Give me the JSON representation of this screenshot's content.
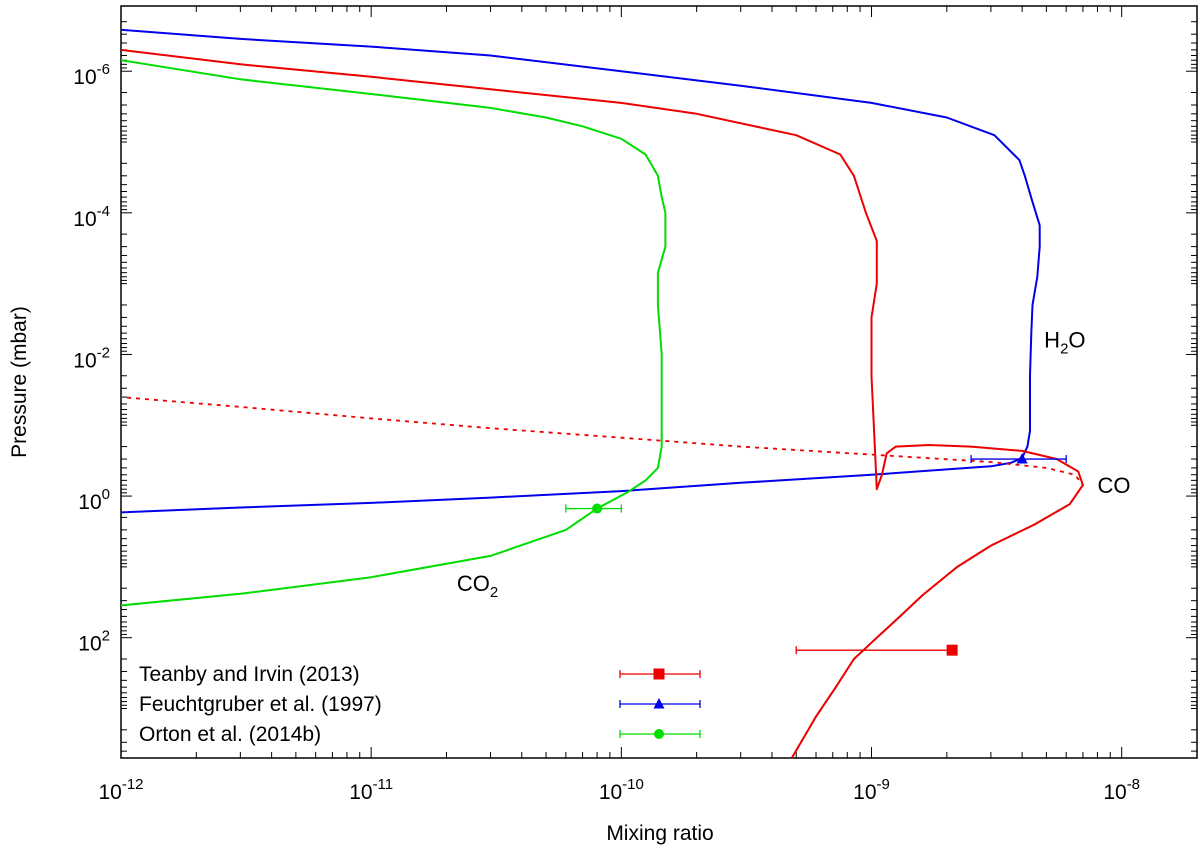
{
  "chart_data": {
    "type": "line",
    "title": "",
    "xlabel": "Mixing ratio",
    "ylabel": "Pressure (mbar)",
    "x_scale": "log",
    "y_scale": "log",
    "y_inverted": true,
    "xlim": [
      1e-12,
      2e-08
    ],
    "ylim": [
      1.2e-07,
      5000
    ],
    "grid": false,
    "legend_position": "bottom-left",
    "x_ticks": [
      {
        "base": "10",
        "exp": "-12",
        "value": 1e-12
      },
      {
        "base": "10",
        "exp": "-11",
        "value": 1e-11
      },
      {
        "base": "10",
        "exp": "-10",
        "value": 1e-10
      },
      {
        "base": "10",
        "exp": "-9",
        "value": 1e-09
      },
      {
        "base": "10",
        "exp": "-8",
        "value": 1e-08
      }
    ],
    "y_ticks": [
      {
        "base": "10",
        "exp": "-6",
        "value": 1e-06
      },
      {
        "base": "10",
        "exp": "-4",
        "value": 0.0001
      },
      {
        "base": "10",
        "exp": "-2",
        "value": 0.01
      },
      {
        "base": "10",
        "exp": "0",
        "value": 1
      },
      {
        "base": "10",
        "exp": "2",
        "value": 100
      }
    ],
    "series": [
      {
        "name": "H2O",
        "color": "#0000ee",
        "dash": "solid",
        "points": [
          [
            1e-12,
            1.7
          ],
          [
            3e-12,
            1.45
          ],
          [
            1e-11,
            1.25
          ],
          [
            3e-11,
            1.05
          ],
          [
            1e-10,
            0.85
          ],
          [
            3e-10,
            0.65
          ],
          [
            1e-09,
            0.5
          ],
          [
            2e-09,
            0.42
          ],
          [
            3e-09,
            0.38
          ],
          [
            3.6e-09,
            0.34
          ],
          [
            4e-09,
            0.29
          ],
          [
            4.2e-09,
            0.2
          ],
          [
            4.3e-09,
            0.12
          ],
          [
            4.3e-09,
            0.05
          ],
          [
            4.3e-09,
            0.02
          ],
          [
            4.35e-09,
            0.005
          ],
          [
            4.4e-09,
            0.002
          ],
          [
            4.6e-09,
            0.0008
          ],
          [
            4.7e-09,
            0.0003
          ],
          [
            4.7e-09,
            0.00015
          ],
          [
            4.4e-09,
            7e-05
          ],
          [
            4.1e-09,
            3e-05
          ],
          [
            3.9e-09,
            1.8e-05
          ],
          [
            3.1e-09,
            8e-06
          ],
          [
            2e-09,
            4.5e-06
          ],
          [
            1e-09,
            2.8e-06
          ],
          [
            3e-10,
            1.6e-06
          ],
          [
            1e-10,
            1e-06
          ],
          [
            3e-11,
            6e-07
          ],
          [
            1e-11,
            4.5e-07
          ],
          [
            3e-12,
            3.5e-07
          ],
          [
            1e-12,
            2.6e-07
          ]
        ]
      },
      {
        "name": "CO",
        "color": "#ee0000",
        "dash": "solid",
        "points": [
          [
            4.8e-10,
            5000
          ],
          [
            6e-10,
            1300
          ],
          [
            7.2e-10,
            500
          ],
          [
            8.5e-10,
            200
          ],
          [
            1.05e-09,
            100
          ],
          [
            1.3e-09,
            50
          ],
          [
            1.6e-09,
            25
          ],
          [
            2.2e-09,
            10
          ],
          [
            3e-09,
            5
          ],
          [
            4.5e-09,
            2.5
          ],
          [
            6.2e-09,
            1.3
          ],
          [
            7e-09,
            0.7
          ],
          [
            6.7e-09,
            0.45
          ],
          [
            5.5e-09,
            0.3
          ],
          [
            4e-09,
            0.23
          ],
          [
            2.5e-09,
            0.2
          ],
          [
            1.7e-09,
            0.19
          ],
          [
            1.25e-09,
            0.2
          ],
          [
            1.15e-09,
            0.25
          ],
          [
            1.1e-09,
            0.5
          ],
          [
            1.05e-09,
            0.8
          ],
          [
            1e-09,
            0.02
          ],
          [
            1e-09,
            0.003
          ],
          [
            1.05e-09,
            0.001
          ],
          [
            1.05e-09,
            0.00025
          ],
          [
            9.5e-10,
            0.0001
          ],
          [
            8.5e-10,
            3e-05
          ],
          [
            7.5e-10,
            1.5e-05
          ],
          [
            5e-10,
            8e-06
          ],
          [
            2e-10,
            4e-06
          ],
          [
            1e-10,
            2.8e-06
          ],
          [
            3e-11,
            1.8e-06
          ],
          [
            1e-11,
            1.2e-06
          ],
          [
            3e-12,
            8e-07
          ],
          [
            1e-12,
            5e-07
          ]
        ]
      },
      {
        "name": "CO dashed",
        "color": "#ee0000",
        "dash": "dotted",
        "points": [
          [
            4.8e-10,
            5000
          ],
          [
            6e-10,
            1300
          ],
          [
            7.2e-10,
            500
          ],
          [
            8.5e-10,
            200
          ],
          [
            1.05e-09,
            100
          ],
          [
            1.3e-09,
            50
          ],
          [
            1.6e-09,
            25
          ],
          [
            2.2e-09,
            10
          ],
          [
            3e-09,
            5
          ],
          [
            4.5e-09,
            2.5
          ],
          [
            6.2e-09,
            1.3
          ],
          [
            7e-09,
            0.7
          ],
          [
            6.5e-09,
            0.5
          ],
          [
            5e-09,
            0.4
          ],
          [
            3e-09,
            0.33
          ],
          [
            1e-09,
            0.26
          ],
          [
            3e-10,
            0.2
          ],
          [
            1e-10,
            0.15
          ],
          [
            3e-11,
            0.11
          ],
          [
            1e-11,
            0.08
          ],
          [
            3e-12,
            0.055
          ],
          [
            1e-12,
            0.04
          ]
        ]
      },
      {
        "name": "CO2",
        "color": "#00dd00",
        "dash": "solid",
        "points": [
          [
            1e-12,
            35
          ],
          [
            3e-12,
            24
          ],
          [
            1e-11,
            14
          ],
          [
            3e-11,
            7
          ],
          [
            6e-11,
            3
          ],
          [
            8e-11,
            1.5
          ],
          [
            1.05e-10,
            0.9
          ],
          [
            1.25e-10,
            0.6
          ],
          [
            1.4e-10,
            0.4
          ],
          [
            1.45e-10,
            0.2
          ],
          [
            1.45e-10,
            0.05
          ],
          [
            1.45e-10,
            0.01
          ],
          [
            1.4e-10,
            0.002
          ],
          [
            1.4e-10,
            0.0007
          ],
          [
            1.5e-10,
            0.0003
          ],
          [
            1.5e-10,
            0.0001
          ],
          [
            1.45e-10,
            6e-05
          ],
          [
            1.4e-10,
            3e-05
          ],
          [
            1.25e-10,
            1.5e-05
          ],
          [
            1e-10,
            9e-06
          ],
          [
            7e-11,
            6e-06
          ],
          [
            5e-11,
            4.5e-06
          ],
          [
            3e-11,
            3.3e-06
          ],
          [
            1e-11,
            2.1e-06
          ],
          [
            3e-12,
            1.3e-06
          ],
          [
            1e-12,
            7e-07
          ]
        ]
      }
    ],
    "observations": [
      {
        "name": "Teanby and Irvin (2013)",
        "color": "#ee0000",
        "marker": "square",
        "x": 2.1e-09,
        "xerr": [
          5e-10,
          2.1e-09
        ],
        "y": 150
      },
      {
        "name": "Feuchtgruber et al. (1997)",
        "color": "#0000ee",
        "marker": "triangle",
        "x": 4e-09,
        "xerr": [
          2.5e-09,
          6e-09
        ],
        "y": 0.3
      },
      {
        "name": "Orton et al. (2014b)",
        "color": "#00dd00",
        "marker": "circle",
        "x": 8e-11,
        "xerr": [
          6e-11,
          1e-10
        ],
        "y": 1.5
      }
    ],
    "annotations": [
      {
        "id": "h2o",
        "base": "H",
        "sub": "2",
        "rest": "O",
        "x": 4.9e-09,
        "y": 0.008
      },
      {
        "id": "co",
        "base": "CO",
        "sub": "",
        "rest": "",
        "x": 8e-09,
        "y": 0.9
      },
      {
        "id": "co2",
        "base": "CO",
        "sub": "2",
        "rest": "",
        "x": 2.2e-11,
        "y": 22
      }
    ],
    "legend": [
      {
        "label": "Teanby and Irvin (2013)",
        "color": "#ee0000",
        "marker": "square"
      },
      {
        "label": "Feuchtgruber et al. (1997)",
        "color": "#0000ee",
        "marker": "triangle"
      },
      {
        "label": "Orton et al. (2014b)",
        "color": "#00dd00",
        "marker": "circle"
      }
    ]
  }
}
